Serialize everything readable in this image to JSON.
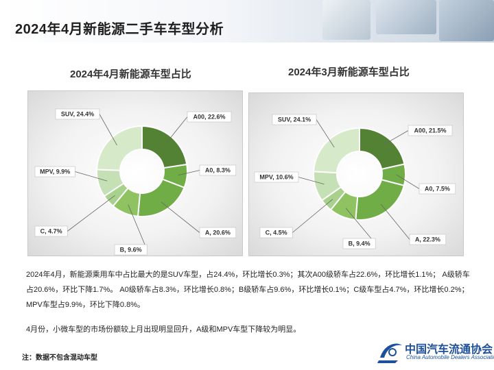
{
  "page": {
    "title": "2024年4月新能源二手车车型分析",
    "description_1": "2024年4月，新能源乘用车中占比最大的是SUV车型，占24.4%，环比增长0.3%；其次A00级轿车占22.6%，环比增长1.1%； A级轿车占20.6%，环比下降1.7%。 A0级轿车占8.3%，环比增长0.8%；B级轿车占9.6%，环比增长0.1%；C级车型占4.7%，环比增长0.2%；MPV车型占9.9%，环比下降0.8%。",
    "description_2": "4月份，小微车型的市场份额较上月出现明显回升，A级和MPV车型下降较为明显。",
    "note": "注：数据不包含混动车型",
    "logo_cn": "中国汽车流通协会",
    "logo_en": "China Automobile Dealers Association"
  },
  "colors": {
    "A00": "#548235",
    "A0": "#70ad47",
    "A": "#70ad47",
    "B": "#8fc362",
    "C": "#a9d18e",
    "MPV": "#c5e0b4",
    "SUV": "#d6e9c8"
  },
  "chart_data": [
    {
      "type": "pie",
      "title": "2024年4月新能源车型占比",
      "categories": [
        "A00",
        "A0",
        "A",
        "B",
        "C",
        "MPV",
        "SUV"
      ],
      "values": [
        22.6,
        8.3,
        20.6,
        9.6,
        4.7,
        9.9,
        24.4
      ],
      "labels": [
        "A00, 22.6%",
        "A0, 8.3%",
        "A, 20.6%",
        "B, 9.6%",
        "C, 4.7%",
        "MPV, 9.9%",
        "SUV, 24.4%"
      ]
    },
    {
      "type": "pie",
      "title": "2024年3月新能源车型占比",
      "categories": [
        "A00",
        "A0",
        "A",
        "B",
        "C",
        "MPV",
        "SUV"
      ],
      "values": [
        21.5,
        7.5,
        22.3,
        9.4,
        4.5,
        10.6,
        24.1
      ],
      "labels": [
        "A00, 21.5%",
        "A0, 7.5%",
        "A, 22.3%",
        "B, 9.4%",
        "C, 4.5%",
        "MPV, 10.6%",
        "SUV, 24.1%"
      ]
    }
  ]
}
